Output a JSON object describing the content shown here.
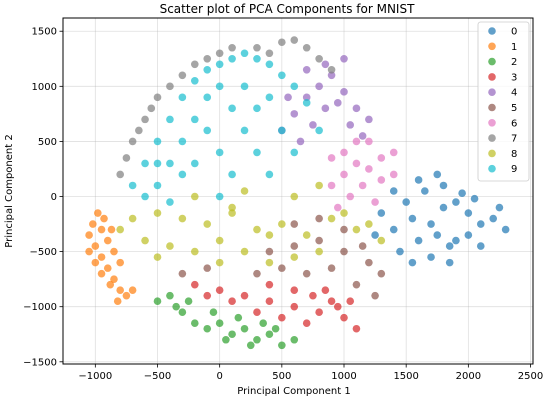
{
  "chart_data": {
    "type": "scatter",
    "title": "Scatter plot of PCA Components for MNIST",
    "xlabel": "Principal Component 1",
    "ylabel": "Principal Component 2",
    "xlim": [
      -1260,
      2520
    ],
    "ylim": [
      -1520,
      1620
    ],
    "xticks": [
      -1000,
      -500,
      0,
      500,
      1000,
      1500,
      2000,
      2500
    ],
    "xtick_labels": [
      "−1000",
      "−500",
      "0",
      "500",
      "1000",
      "1500",
      "2000",
      "2500"
    ],
    "yticks": [
      -1500,
      -1000,
      -500,
      0,
      500,
      1000,
      1500
    ],
    "ytick_labels": [
      "−1500",
      "−1000",
      "−500",
      "0",
      "500",
      "1000",
      "1500"
    ],
    "grid": true,
    "legend_position": "upper-right",
    "series": [
      {
        "name": "0",
        "color": "#1f77b4",
        "values": [
          [
            1400,
            -300
          ],
          [
            1550,
            -200
          ],
          [
            1700,
            -250
          ],
          [
            1800,
            -100
          ],
          [
            1900,
            -50
          ],
          [
            2000,
            -150
          ],
          [
            2100,
            -250
          ],
          [
            2200,
            -200
          ],
          [
            1600,
            -400
          ],
          [
            1750,
            -350
          ],
          [
            1850,
            -450
          ],
          [
            1500,
            -50
          ],
          [
            1650,
            50
          ],
          [
            1800,
            100
          ],
          [
            1950,
            30
          ],
          [
            2050,
            -20
          ],
          [
            2250,
            -100
          ],
          [
            2300,
            -300
          ],
          [
            1450,
            -500
          ],
          [
            1700,
            -550
          ],
          [
            1900,
            -400
          ],
          [
            2000,
            -350
          ],
          [
            1600,
            150
          ],
          [
            1750,
            200
          ],
          [
            1550,
            -600
          ],
          [
            1850,
            -600
          ],
          [
            2100,
            -450
          ],
          [
            1300,
            -150
          ],
          [
            1250,
            -350
          ],
          [
            1400,
            50
          ]
        ]
      },
      {
        "name": "1",
        "color": "#ff7f0e",
        "values": [
          [
            -1050,
            -350
          ],
          [
            -1000,
            -450
          ],
          [
            -950,
            -550
          ],
          [
            -900,
            -650
          ],
          [
            -850,
            -750
          ],
          [
            -800,
            -850
          ],
          [
            -950,
            -300
          ],
          [
            -900,
            -400
          ],
          [
            -850,
            -500
          ],
          [
            -1000,
            -600
          ],
          [
            -950,
            -700
          ],
          [
            -880,
            -800
          ],
          [
            -750,
            -900
          ],
          [
            -820,
            -950
          ],
          [
            -1020,
            -250
          ],
          [
            -980,
            -150
          ],
          [
            -930,
            -200
          ],
          [
            -870,
            -300
          ],
          [
            -800,
            -600
          ],
          [
            -700,
            -850
          ],
          [
            -1050,
            -500
          ]
        ]
      },
      {
        "name": "2",
        "color": "#2ca02c",
        "values": [
          [
            -400,
            -900
          ],
          [
            -300,
            -1050
          ],
          [
            -200,
            -1150
          ],
          [
            -100,
            -1200
          ],
          [
            0,
            -1150
          ],
          [
            100,
            -1250
          ],
          [
            200,
            -1200
          ],
          [
            300,
            -1300
          ],
          [
            400,
            -1250
          ],
          [
            500,
            -1350
          ],
          [
            -500,
            -950
          ],
          [
            -250,
            -950
          ],
          [
            -50,
            -1050
          ],
          [
            150,
            -1100
          ],
          [
            350,
            -1150
          ],
          [
            600,
            -1300
          ],
          [
            -350,
            -1000
          ],
          [
            250,
            -1350
          ],
          [
            50,
            -1300
          ],
          [
            450,
            -1200
          ]
        ]
      },
      {
        "name": "3",
        "color": "#d62728",
        "values": [
          [
            -200,
            -800
          ],
          [
            0,
            -850
          ],
          [
            200,
            -900
          ],
          [
            400,
            -950
          ],
          [
            600,
            -1000
          ],
          [
            800,
            -1050
          ],
          [
            900,
            -950
          ],
          [
            1000,
            -1100
          ],
          [
            1100,
            -1200
          ],
          [
            300,
            -1050
          ],
          [
            500,
            -1100
          ],
          [
            700,
            -1150
          ],
          [
            -100,
            -900
          ],
          [
            100,
            -950
          ],
          [
            850,
            -850
          ],
          [
            950,
            -1000
          ],
          [
            750,
            -900
          ],
          [
            400,
            -800
          ],
          [
            600,
            -850
          ],
          [
            1050,
            -950
          ]
        ]
      },
      {
        "name": "4",
        "color": "#9467bd",
        "values": [
          [
            500,
            600
          ],
          [
            600,
            750
          ],
          [
            700,
            900
          ],
          [
            800,
            1000
          ],
          [
            900,
            1100
          ],
          [
            1000,
            950
          ],
          [
            1100,
            800
          ],
          [
            1200,
            700
          ],
          [
            650,
            500
          ],
          [
            750,
            650
          ],
          [
            850,
            800
          ],
          [
            950,
            850
          ],
          [
            1050,
            650
          ],
          [
            1150,
            550
          ],
          [
            550,
            900
          ],
          [
            850,
            1200
          ],
          [
            1000,
            1250
          ],
          [
            700,
            1150
          ]
        ]
      },
      {
        "name": "5",
        "color": "#8c564b",
        "values": [
          [
            400,
            -500
          ],
          [
            600,
            -450
          ],
          [
            800,
            -400
          ],
          [
            1000,
            -500
          ],
          [
            1200,
            -600
          ],
          [
            1300,
            -700
          ],
          [
            500,
            -650
          ],
          [
            700,
            -700
          ],
          [
            900,
            -650
          ],
          [
            1100,
            -800
          ],
          [
            1250,
            -900
          ],
          [
            300,
            -700
          ],
          [
            600,
            -250
          ],
          [
            800,
            -200
          ],
          [
            1000,
            -300
          ],
          [
            1150,
            -450
          ],
          [
            -300,
            -700
          ],
          [
            -100,
            -650
          ]
        ]
      },
      {
        "name": "6",
        "color": "#e377c2",
        "values": [
          [
            900,
            100
          ],
          [
            1000,
            200
          ],
          [
            1100,
            300
          ],
          [
            1200,
            250
          ],
          [
            1300,
            350
          ],
          [
            1400,
            400
          ],
          [
            1000,
            400
          ],
          [
            1100,
            500
          ],
          [
            900,
            350
          ],
          [
            1200,
            500
          ],
          [
            1300,
            150
          ],
          [
            1150,
            100
          ],
          [
            1050,
            0
          ],
          [
            950,
            -100
          ],
          [
            1250,
            -50
          ],
          [
            1400,
            200
          ]
        ]
      },
      {
        "name": "7",
        "color": "#7f7f7f",
        "values": [
          [
            -800,
            200
          ],
          [
            -700,
            500
          ],
          [
            -600,
            700
          ],
          [
            -500,
            900
          ],
          [
            -400,
            1000
          ],
          [
            -300,
            1100
          ],
          [
            -200,
            1200
          ],
          [
            -100,
            1250
          ],
          [
            0,
            1300
          ],
          [
            100,
            1350
          ],
          [
            300,
            1350
          ],
          [
            500,
            1400
          ],
          [
            700,
            1350
          ],
          [
            800,
            1250
          ],
          [
            -750,
            350
          ],
          [
            -650,
            600
          ],
          [
            -550,
            800
          ],
          [
            900,
            1150
          ],
          [
            600,
            1420
          ],
          [
            400,
            1300
          ]
        ]
      },
      {
        "name": "8",
        "color": "#bcbd22",
        "values": [
          [
            -700,
            -200
          ],
          [
            -500,
            -150
          ],
          [
            -300,
            -200
          ],
          [
            -100,
            -250
          ],
          [
            100,
            -150
          ],
          [
            300,
            -300
          ],
          [
            500,
            -250
          ],
          [
            700,
            -350
          ],
          [
            900,
            -200
          ],
          [
            1100,
            -300
          ],
          [
            -600,
            -400
          ],
          [
            -400,
            -450
          ],
          [
            -200,
            -500
          ],
          [
            0,
            -400
          ],
          [
            200,
            -500
          ],
          [
            400,
            -350
          ],
          [
            600,
            -550
          ],
          [
            800,
            -500
          ],
          [
            1000,
            -150
          ],
          [
            -200,
            0
          ],
          [
            200,
            50
          ],
          [
            600,
            0
          ],
          [
            1200,
            -250
          ],
          [
            -800,
            -300
          ],
          [
            -500,
            -550
          ],
          [
            0,
            -600
          ],
          [
            400,
            -600
          ],
          [
            800,
            100
          ],
          [
            1300,
            -400
          ],
          [
            100,
            -100
          ]
        ]
      },
      {
        "name": "9",
        "color": "#17becf",
        "values": [
          [
            -700,
            100
          ],
          [
            -600,
            300
          ],
          [
            -500,
            500
          ],
          [
            -400,
            700
          ],
          [
            -300,
            900
          ],
          [
            -200,
            1050
          ],
          [
            -100,
            1150
          ],
          [
            0,
            1200
          ],
          [
            100,
            1250
          ],
          [
            200,
            1300
          ],
          [
            300,
            1250
          ],
          [
            400,
            1200
          ],
          [
            500,
            1100
          ],
          [
            600,
            1000
          ],
          [
            700,
            850
          ],
          [
            -500,
            100
          ],
          [
            -400,
            300
          ],
          [
            -300,
            500
          ],
          [
            -200,
            700
          ],
          [
            -100,
            900
          ],
          [
            0,
            1000
          ],
          [
            100,
            800
          ],
          [
            200,
            600
          ],
          [
            300,
            400
          ],
          [
            400,
            200
          ],
          [
            -600,
            0
          ],
          [
            -300,
            200
          ],
          [
            0,
            400
          ],
          [
            300,
            800
          ],
          [
            500,
            600
          ],
          [
            -200,
            300
          ],
          [
            100,
            200
          ],
          [
            -400,
            -50
          ],
          [
            600,
            400
          ],
          [
            200,
            1000
          ],
          [
            -100,
            600
          ],
          [
            400,
            900
          ],
          [
            800,
            600
          ],
          [
            0,
            0
          ],
          [
            -500,
            300
          ]
        ]
      }
    ]
  }
}
